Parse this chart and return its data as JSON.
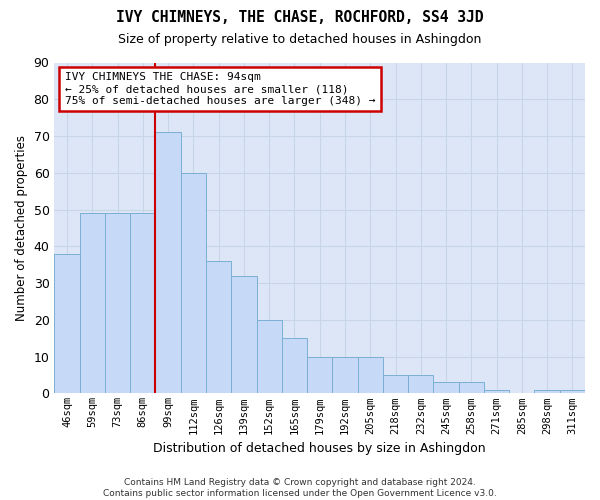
{
  "title": "IVY CHIMNEYS, THE CHASE, ROCHFORD, SS4 3JD",
  "subtitle": "Size of property relative to detached houses in Ashingdon",
  "xlabel": "Distribution of detached houses by size in Ashingdon",
  "ylabel": "Number of detached properties",
  "categories": [
    "46sqm",
    "59sqm",
    "73sqm",
    "86sqm",
    "99sqm",
    "112sqm",
    "126sqm",
    "139sqm",
    "152sqm",
    "165sqm",
    "179sqm",
    "192sqm",
    "205sqm",
    "218sqm",
    "232sqm",
    "245sqm",
    "258sqm",
    "271sqm",
    "285sqm",
    "298sqm",
    "311sqm"
  ],
  "values": [
    38,
    49,
    49,
    49,
    71,
    60,
    36,
    32,
    20,
    15,
    10,
    10,
    10,
    5,
    5,
    3,
    3,
    1,
    0,
    1,
    1
  ],
  "bar_color": "#c6d9f7",
  "bar_edge_color": "#7bafd4",
  "grid_color": "#c8d4e8",
  "background_color": "#dce6f7",
  "annotation_box_text": "IVY CHIMNEYS THE CHASE: 94sqm\n← 25% of detached houses are smaller (118)\n75% of semi-detached houses are larger (348) →",
  "annotation_box_edge_color": "#cc0000",
  "vline_color": "#cc0000",
  "ylim": [
    0,
    90
  ],
  "yticks": [
    0,
    10,
    20,
    30,
    40,
    50,
    60,
    70,
    80,
    90
  ],
  "footer1": "Contains HM Land Registry data © Crown copyright and database right 2024.",
  "footer2": "Contains public sector information licensed under the Open Government Licence v3.0."
}
